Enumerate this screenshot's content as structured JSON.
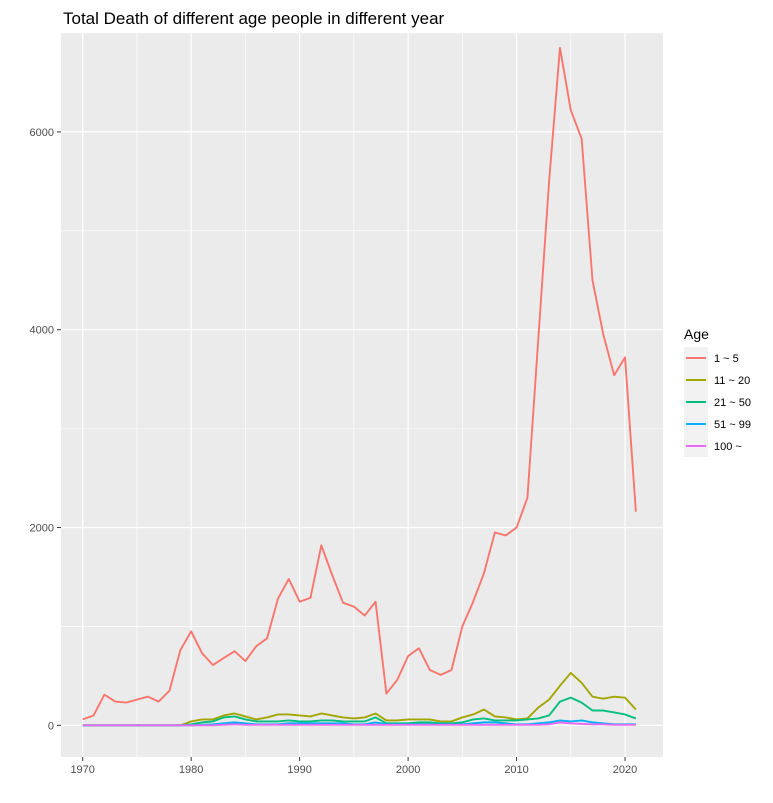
{
  "chart_data": {
    "type": "line",
    "title": "Total Death of different age people in different year",
    "xlabel": "",
    "ylabel": "",
    "xlim": [
      1968,
      2023.5
    ],
    "ylim": [
      -320,
      7000
    ],
    "x_ticks": [
      1970,
      1980,
      1990,
      2000,
      2010,
      2020
    ],
    "y_ticks": [
      0,
      2000,
      4000,
      6000
    ],
    "grid": true,
    "legend": {
      "title": "Age",
      "position": "right"
    },
    "x": [
      1970,
      1971,
      1972,
      1973,
      1974,
      1975,
      1976,
      1977,
      1978,
      1979,
      1980,
      1981,
      1982,
      1983,
      1984,
      1985,
      1986,
      1987,
      1988,
      1989,
      1990,
      1991,
      1992,
      1993,
      1994,
      1995,
      1996,
      1997,
      1998,
      1999,
      2000,
      2001,
      2002,
      2003,
      2004,
      2005,
      2006,
      2007,
      2008,
      2009,
      2010,
      2011,
      2012,
      2013,
      2014,
      2015,
      2016,
      2017,
      2018,
      2019,
      2020,
      2021
    ],
    "series": [
      {
        "name": "1 ~ 5",
        "color": "#F8766D",
        "values": [
          60,
          100,
          310,
          240,
          230,
          260,
          290,
          240,
          350,
          760,
          950,
          730,
          610,
          680,
          750,
          650,
          800,
          880,
          1280,
          1480,
          1250,
          1290,
          1820,
          1520,
          1240,
          1200,
          1110,
          1250,
          320,
          460,
          700,
          780,
          560,
          510,
          560,
          1000,
          1250,
          1540,
          1950,
          1920,
          2000,
          2300,
          3900,
          5500,
          6850,
          6220,
          5930,
          4500,
          3950,
          3540,
          3720,
          2160
        ]
      },
      {
        "name": "11 ~ 20",
        "color": "#A3A500",
        "values": [
          0,
          0,
          0,
          0,
          0,
          0,
          0,
          0,
          0,
          0,
          40,
          60,
          60,
          100,
          120,
          90,
          60,
          80,
          110,
          110,
          100,
          90,
          120,
          100,
          80,
          70,
          80,
          120,
          50,
          50,
          60,
          60,
          60,
          40,
          40,
          80,
          110,
          160,
          90,
          80,
          60,
          70,
          180,
          260,
          400,
          530,
          430,
          290,
          270,
          290,
          280,
          160
        ]
      },
      {
        "name": "21 ~ 50",
        "color": "#00BF7D",
        "values": [
          0,
          0,
          0,
          0,
          0,
          0,
          0,
          0,
          0,
          0,
          10,
          30,
          40,
          80,
          90,
          60,
          40,
          40,
          40,
          50,
          40,
          40,
          50,
          50,
          40,
          40,
          40,
          80,
          20,
          20,
          20,
          30,
          30,
          20,
          20,
          30,
          60,
          70,
          50,
          50,
          50,
          60,
          70,
          100,
          240,
          280,
          230,
          150,
          150,
          130,
          110,
          70
        ]
      },
      {
        "name": "51 ~ 99",
        "color": "#00B0F6",
        "values": [
          0,
          0,
          0,
          0,
          0,
          0,
          0,
          0,
          0,
          0,
          0,
          5,
          10,
          20,
          30,
          20,
          10,
          10,
          10,
          20,
          20,
          20,
          20,
          20,
          20,
          10,
          10,
          30,
          10,
          10,
          10,
          10,
          10,
          10,
          10,
          10,
          20,
          30,
          30,
          20,
          10,
          10,
          20,
          30,
          50,
          40,
          50,
          30,
          20,
          10,
          10,
          10
        ]
      },
      {
        "name": "100 ~",
        "color": "#E76BF3",
        "values": [
          0,
          0,
          0,
          0,
          0,
          0,
          0,
          0,
          0,
          0,
          0,
          0,
          0,
          5,
          10,
          5,
          5,
          5,
          5,
          5,
          5,
          5,
          5,
          5,
          5,
          5,
          5,
          5,
          5,
          5,
          5,
          5,
          5,
          5,
          5,
          5,
          5,
          5,
          5,
          5,
          5,
          5,
          5,
          10,
          30,
          20,
          15,
          10,
          10,
          5,
          5,
          5
        ]
      }
    ]
  }
}
